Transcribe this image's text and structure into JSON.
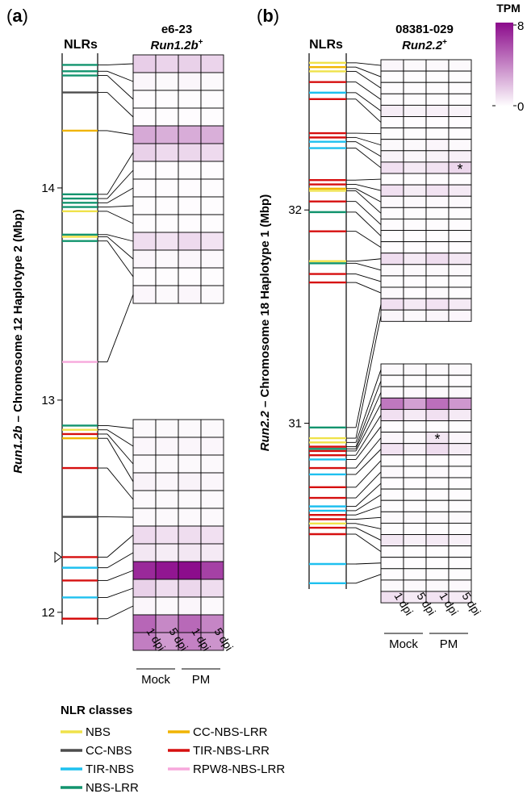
{
  "colors": {
    "NBS": "#efe24a",
    "CC-NBS": "#4d4d4d",
    "TIR-NBS": "#1ec0ef",
    "NBS-LRR": "#12946e",
    "CC-NBS-LRR": "#f0b400",
    "TIR-NBS-LRR": "#d60f0f",
    "RPW8-NBS-LRR": "#f7a8dc",
    "heat_low": "#ffffff",
    "heat_high": "#8b0a8b"
  },
  "legend": {
    "title": "NLR classes",
    "items": [
      {
        "label": "NBS",
        "key": "NBS"
      },
      {
        "label": "CC-NBS",
        "key": "CC-NBS"
      },
      {
        "label": "TIR-NBS",
        "key": "TIR-NBS"
      },
      {
        "label": "NBS-LRR",
        "key": "NBS-LRR"
      },
      {
        "label": "CC-NBS-LRR",
        "key": "CC-NBS-LRR"
      },
      {
        "label": "TIR-NBS-LRR",
        "key": "TIR-NBS-LRR"
      },
      {
        "label": "RPW8-NBS-LRR",
        "key": "RPW8-NBS-LRR"
      }
    ]
  },
  "colorbar": {
    "title": "TPM",
    "max_label": "8",
    "min_label": "0",
    "max": 8,
    "min": 0
  },
  "chart_data": [
    {
      "type": "heatmap",
      "panel": "(a)",
      "panel_letter": "a",
      "track_label": "NLRs",
      "title_line1": "e6-23",
      "title_line2_italic": "Run1.2b",
      "title_line2_sup": "+",
      "ylabel_italic": "Run1.2b",
      "ylabel_rest": " – Chromosome 12 Haplotype 2 (Mbp)",
      "ylim": [
        11.95,
        14.65
      ],
      "yticks": [
        12,
        13,
        14
      ],
      "ytick_labels": [
        "12",
        "13",
        "14"
      ],
      "columns": [
        "1 dpi",
        "5 dpi",
        "1 dpi",
        "5 dpi"
      ],
      "groups": [
        {
          "label": "Mock",
          "cols": [
            0,
            1
          ]
        },
        {
          "label": "PM",
          "cols": [
            2,
            3
          ]
        }
      ],
      "nlrs": [
        {
          "pos": 14.58,
          "cls": "NBS-LRR"
        },
        {
          "pos": 14.55,
          "cls": "NBS-LRR"
        },
        {
          "pos": 14.53,
          "cls": "NBS-LRR"
        },
        {
          "pos": 14.45,
          "cls": "CC-NBS"
        },
        {
          "pos": 14.27,
          "cls": "CC-NBS-LRR"
        },
        {
          "pos": 13.97,
          "cls": "NBS-LRR"
        },
        {
          "pos": 13.95,
          "cls": "NBS-LRR"
        },
        {
          "pos": 13.93,
          "cls": "NBS-LRR"
        },
        {
          "pos": 13.91,
          "cls": "NBS-LRR"
        },
        {
          "pos": 13.89,
          "cls": "NBS"
        },
        {
          "pos": 13.78,
          "cls": "NBS-LRR"
        },
        {
          "pos": 13.77,
          "cls": "NBS"
        },
        {
          "pos": 13.75,
          "cls": "NBS-LRR"
        },
        {
          "pos": 13.18,
          "cls": "RPW8-NBS-LRR"
        },
        {
          "pos": 12.88,
          "cls": "NBS-LRR"
        },
        {
          "pos": 12.86,
          "cls": "NBS"
        },
        {
          "pos": 12.84,
          "cls": "TIR-NBS-LRR"
        },
        {
          "pos": 12.82,
          "cls": "CC-NBS-LRR"
        },
        {
          "pos": 12.68,
          "cls": "TIR-NBS-LRR"
        },
        {
          "pos": 12.45,
          "cls": "CC-NBS"
        },
        {
          "pos": 12.26,
          "cls": "TIR-NBS-LRR",
          "marker": true
        },
        {
          "pos": 12.21,
          "cls": "TIR-NBS"
        },
        {
          "pos": 12.15,
          "cls": "TIR-NBS-LRR"
        },
        {
          "pos": 12.07,
          "cls": "TIR-NBS"
        },
        {
          "pos": 11.97,
          "cls": "TIR-NBS-LRR"
        }
      ],
      "blocks": [
        {
          "values": [
            [
              1.6,
              1.4,
              1.5,
              1.4
            ],
            [
              0.3,
              0.2,
              0.3,
              0.2
            ],
            [
              0.1,
              0.1,
              0.1,
              0.1
            ],
            [
              0.1,
              0.1,
              0.1,
              0.1
            ],
            [
              2.8,
              2.6,
              2.7,
              2.6
            ],
            [
              1.5,
              1.2,
              1.3,
              1.2
            ],
            [
              0.1,
              0.1,
              0.1,
              0.1
            ],
            [
              0.1,
              0.1,
              0.1,
              0.1
            ],
            [
              0.1,
              0.1,
              0.1,
              0.1
            ],
            [
              0.1,
              0.1,
              0.1,
              0.1
            ],
            [
              1.1,
              0.9,
              1.2,
              0.9
            ],
            [
              0.3,
              0.2,
              0.3,
              0.2
            ],
            [
              0.1,
              0.1,
              0.1,
              0.1
            ],
            [
              0.3,
              0.2,
              0.3,
              0.2
            ]
          ],
          "stars": []
        },
        {
          "values": [
            [
              0.2,
              0.2,
              0.2,
              0.2
            ],
            [
              0.3,
              0.3,
              0.3,
              0.3
            ],
            [
              0.2,
              0.2,
              0.2,
              0.2
            ],
            [
              0.4,
              0.3,
              0.4,
              0.3
            ],
            [
              0.2,
              0.2,
              0.2,
              0.2
            ],
            [
              0.2,
              0.2,
              0.2,
              0.2
            ],
            [
              1.2,
              1.0,
              1.1,
              1.0
            ],
            [
              0.8,
              0.6,
              0.8,
              0.7
            ],
            [
              7.0,
              7.6,
              7.9,
              6.2
            ],
            [
              1.5,
              1.1,
              1.3,
              1.1
            ],
            [
              0.3,
              0.2,
              0.3,
              0.2
            ],
            [
              5.0,
              3.9,
              4.9,
              4.0
            ],
            [
              4.2,
              3.3,
              4.1,
              3.5
            ]
          ],
          "stars": []
        }
      ]
    },
    {
      "type": "heatmap",
      "panel": "(b)",
      "panel_letter": "b",
      "track_label": "NLRs",
      "title_line1": "08381-029",
      "title_line2_italic": "Run2.2",
      "title_line2_sup": "+",
      "ylabel_italic": "Run2.2",
      "ylabel_rest": " – Chromosome 18 Haplotype 1 (Mbp)",
      "ylim": [
        30.2,
        32.75
      ],
      "yticks": [
        31,
        32
      ],
      "ytick_labels": [
        "31",
        "32"
      ],
      "columns": [
        "1 dpi",
        "5 dpi",
        "1 dpi",
        "5 dpi"
      ],
      "groups": [
        {
          "label": "Mock",
          "cols": [
            0,
            1
          ]
        },
        {
          "label": "PM",
          "cols": [
            2,
            3
          ]
        }
      ],
      "nlrs": [
        {
          "pos": 32.69,
          "cls": "NBS"
        },
        {
          "pos": 32.67,
          "cls": "CC-NBS-LRR"
        },
        {
          "pos": 32.65,
          "cls": "NBS"
        },
        {
          "pos": 32.6,
          "cls": "TIR-NBS-LRR"
        },
        {
          "pos": 32.55,
          "cls": "TIR-NBS"
        },
        {
          "pos": 32.52,
          "cls": "TIR-NBS-LRR"
        },
        {
          "pos": 32.36,
          "cls": "TIR-NBS-LRR"
        },
        {
          "pos": 32.34,
          "cls": "TIR-NBS-LRR"
        },
        {
          "pos": 32.32,
          "cls": "TIR-NBS"
        },
        {
          "pos": 32.29,
          "cls": "TIR-NBS"
        },
        {
          "pos": 32.14,
          "cls": "TIR-NBS-LRR"
        },
        {
          "pos": 32.12,
          "cls": "TIR-NBS-LRR"
        },
        {
          "pos": 32.1,
          "cls": "CC-NBS-LRR"
        },
        {
          "pos": 32.09,
          "cls": "NBS"
        },
        {
          "pos": 32.04,
          "cls": "TIR-NBS-LRR"
        },
        {
          "pos": 31.99,
          "cls": "NBS-LRR"
        },
        {
          "pos": 31.9,
          "cls": "TIR-NBS-LRR"
        },
        {
          "pos": 31.76,
          "cls": "NBS"
        },
        {
          "pos": 31.75,
          "cls": "NBS-LRR"
        },
        {
          "pos": 31.7,
          "cls": "TIR-NBS-LRR"
        },
        {
          "pos": 31.66,
          "cls": "TIR-NBS-LRR"
        },
        {
          "pos": 30.98,
          "cls": "NBS-LRR"
        },
        {
          "pos": 30.93,
          "cls": "NBS"
        },
        {
          "pos": 30.91,
          "cls": "NBS"
        },
        {
          "pos": 30.89,
          "cls": "TIR-NBS-LRR"
        },
        {
          "pos": 30.88,
          "cls": "NBS-LRR"
        },
        {
          "pos": 30.87,
          "cls": "TIR-NBS-LRR"
        },
        {
          "pos": 30.85,
          "cls": "TIR-NBS-LRR"
        },
        {
          "pos": 30.83,
          "cls": "TIR-NBS"
        },
        {
          "pos": 30.79,
          "cls": "TIR-NBS-LRR"
        },
        {
          "pos": 30.76,
          "cls": "TIR-NBS"
        },
        {
          "pos": 30.7,
          "cls": "TIR-NBS-LRR"
        },
        {
          "pos": 30.65,
          "cls": "TIR-NBS-LRR"
        },
        {
          "pos": 30.61,
          "cls": "TIR-NBS"
        },
        {
          "pos": 30.59,
          "cls": "TIR-NBS"
        },
        {
          "pos": 30.57,
          "cls": "TIR-NBS-LRR"
        },
        {
          "pos": 30.55,
          "cls": "TIR-NBS-LRR"
        },
        {
          "pos": 30.53,
          "cls": "NBS"
        },
        {
          "pos": 30.51,
          "cls": "TIR-NBS-LRR"
        },
        {
          "pos": 30.48,
          "cls": "TIR-NBS-LRR"
        },
        {
          "pos": 30.34,
          "cls": "TIR-NBS"
        },
        {
          "pos": 30.25,
          "cls": "TIR-NBS"
        }
      ],
      "blocks": [
        {
          "values": [
            [
              0.3,
              0.2,
              0.2,
              0.2
            ],
            [
              0.1,
              0.1,
              0.1,
              0.1
            ],
            [
              0.1,
              0.1,
              0.1,
              0.1
            ],
            [
              0.1,
              0.1,
              0.1,
              0.1
            ],
            [
              0.6,
              0.4,
              0.5,
              0.4
            ],
            [
              0.1,
              0.1,
              0.1,
              0.1
            ],
            [
              0.1,
              0.1,
              0.1,
              0.1
            ],
            [
              0.2,
              0.2,
              0.3,
              0.2
            ],
            [
              0.4,
              0.3,
              0.4,
              0.5
            ],
            [
              1.0,
              0.7,
              0.9,
              1.3
            ],
            [
              0.1,
              0.1,
              0.1,
              0.1
            ],
            [
              1.0,
              0.6,
              0.9,
              0.7
            ],
            [
              0.2,
              0.2,
              0.2,
              0.2
            ],
            [
              0.1,
              0.1,
              0.1,
              0.1
            ],
            [
              0.1,
              0.1,
              0.1,
              0.1
            ],
            [
              0.1,
              0.1,
              0.1,
              0.1
            ],
            [
              0.1,
              0.1,
              0.1,
              0.1
            ],
            [
              1.1,
              0.7,
              1.1,
              0.8
            ],
            [
              0.2,
              0.2,
              0.2,
              0.2
            ],
            [
              0.1,
              0.1,
              0.1,
              0.1
            ],
            [
              0.2,
              0.1,
              0.2,
              0.1
            ],
            [
              1.0,
              0.7,
              0.9,
              0.7
            ],
            [
              0.3,
              0.2,
              0.3,
              0.3
            ]
          ],
          "stars": [
            [
              9,
              3
            ]
          ]
        },
        {
          "values": [
            [
              0.2,
              0.2,
              0.2,
              0.2
            ],
            [
              0.1,
              0.1,
              0.1,
              0.1
            ],
            [
              0.2,
              0.2,
              0.2,
              0.2
            ],
            [
              4.4,
              3.1,
              4.7,
              3.4
            ],
            [
              1.0,
              0.7,
              1.0,
              0.7
            ],
            [
              0.1,
              0.1,
              0.1,
              0.1
            ],
            [
              0.3,
              0.2,
              0.8,
              0.3
            ],
            [
              0.9,
              0.5,
              1.1,
              0.6
            ],
            [
              0.1,
              0.1,
              0.1,
              0.1
            ],
            [
              0.2,
              0.1,
              0.2,
              0.1
            ],
            [
              0.1,
              0.1,
              0.1,
              0.1
            ],
            [
              0.1,
              0.1,
              0.1,
              0.1
            ],
            [
              0.1,
              0.1,
              0.1,
              0.1
            ],
            [
              0.2,
              0.2,
              0.2,
              0.2
            ],
            [
              0.1,
              0.1,
              0.1,
              0.1
            ],
            [
              0.8,
              0.5,
              0.7,
              0.5
            ],
            [
              0.1,
              0.1,
              0.1,
              0.1
            ],
            [
              0.1,
              0.1,
              0.1,
              0.1
            ],
            [
              0.1,
              0.1,
              0.1,
              0.1
            ],
            [
              0.2,
              0.2,
              0.2,
              0.2
            ],
            [
              1.0,
              0.7,
              0.9,
              0.7
            ]
          ],
          "stars": [
            [
              6,
              2
            ]
          ]
        }
      ]
    }
  ]
}
